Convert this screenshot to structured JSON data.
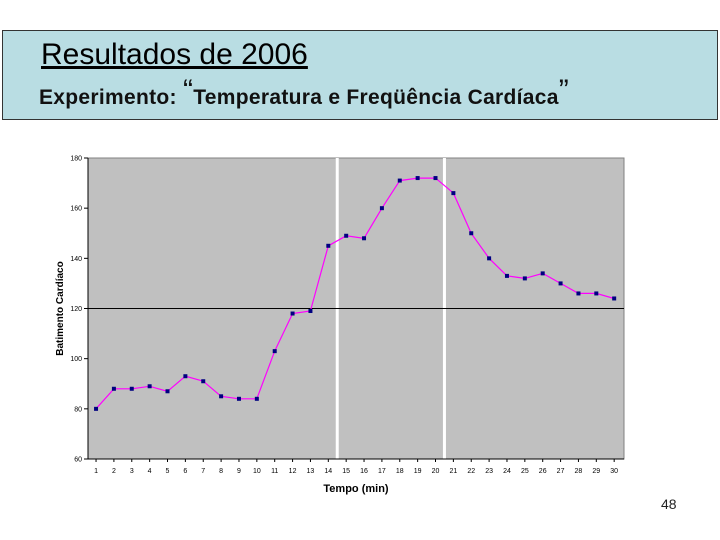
{
  "slide": {
    "title": "Resultados de 2006",
    "subtitle_prefix": "Experimento:",
    "subtitle_open_quote": "“",
    "subtitle_text": "Temperatura e Freqüência Cardíaca",
    "subtitle_close_quote": "”",
    "page_number": "48"
  },
  "colors": {
    "header_bg": "#b9dde3",
    "plot_bg": "#c0c0c0",
    "line": "#ff00ff",
    "marker": "#000080"
  },
  "chart_data": {
    "type": "line",
    "title": "",
    "xlabel": "Tempo (min)",
    "ylabel": "Batimento Cardíaco",
    "ylim": [
      60,
      180
    ],
    "yticks": [
      60,
      80,
      100,
      120,
      140,
      160,
      180
    ],
    "reference_line_y": 120,
    "vertical_markers_x": [
      14.5,
      20.5
    ],
    "grid": false,
    "x": [
      1,
      2,
      3,
      4,
      5,
      6,
      7,
      8,
      9,
      10,
      11,
      12,
      13,
      14,
      15,
      16,
      17,
      18,
      19,
      20,
      21,
      22,
      23,
      24,
      25,
      26,
      27,
      28,
      29,
      30
    ],
    "series": [
      {
        "values": [
          80,
          88,
          88,
          89,
          87,
          93,
          91,
          85,
          84,
          84,
          103,
          118,
          119,
          145,
          149,
          148,
          160,
          171,
          172,
          172,
          166,
          150,
          140,
          133,
          132,
          134,
          130,
          126,
          126,
          124
        ]
      }
    ]
  }
}
